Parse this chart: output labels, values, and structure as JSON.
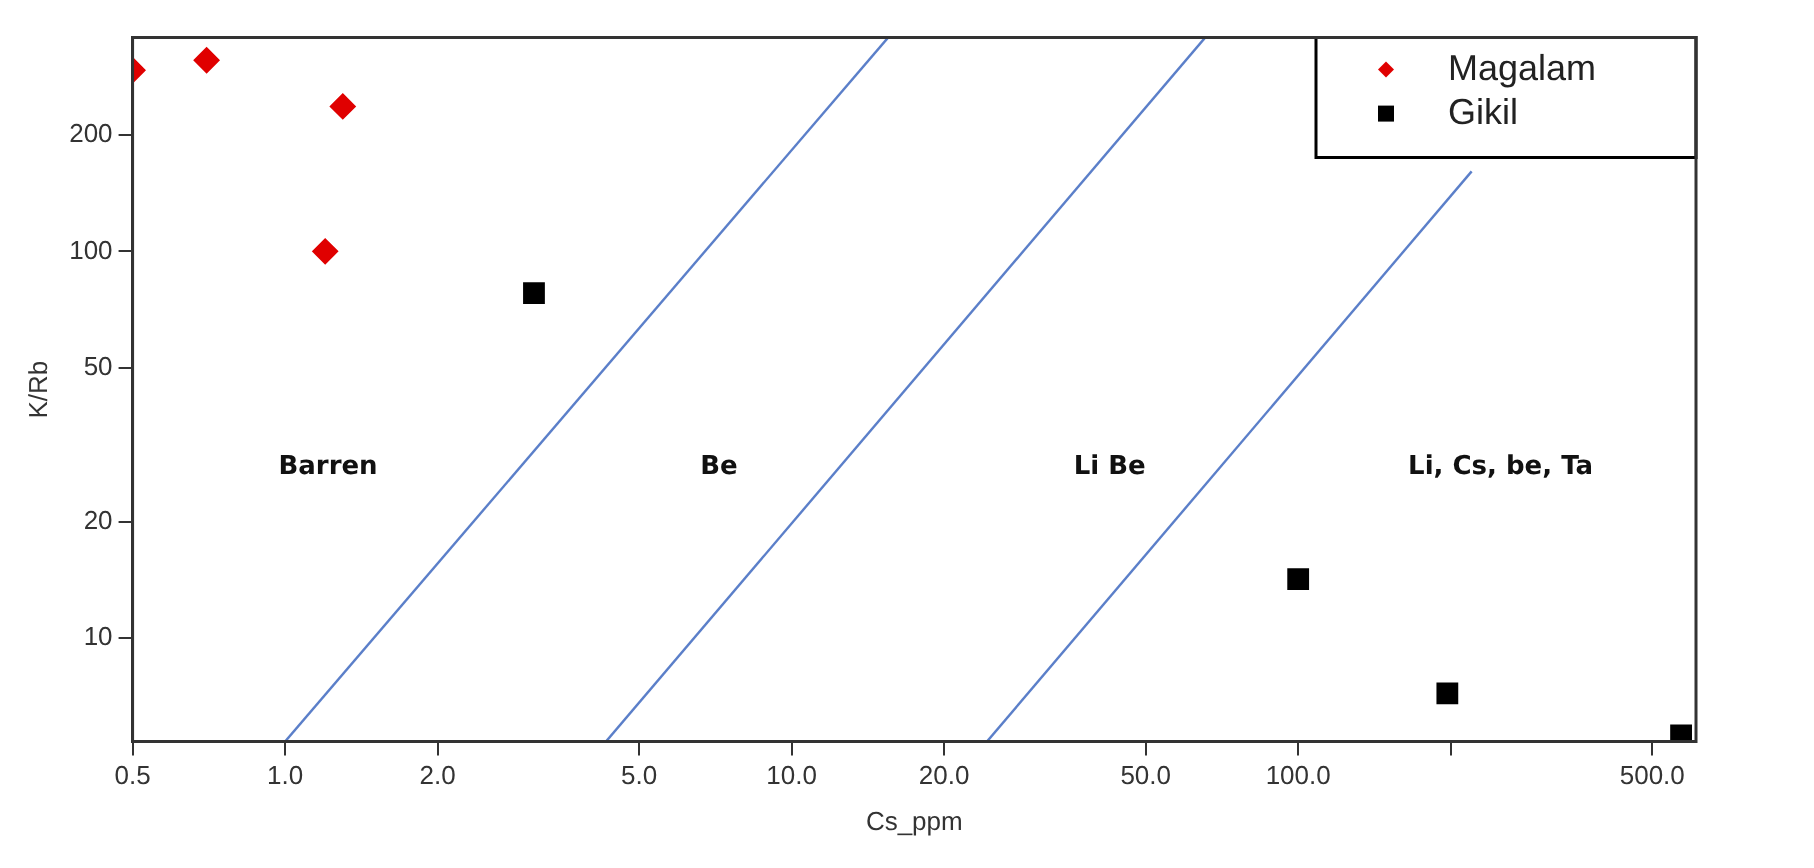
{
  "chart_data": {
    "type": "scatter",
    "xlabel": "Cs_ppm",
    "ylabel": "K/Rb",
    "log": "xy",
    "grid": false,
    "legend": "top right",
    "xlim": [
      0.5,
      610
    ],
    "ylim": [
      5.4,
      357
    ],
    "xticks": [
      {
        "value": 0.5,
        "label": "0.5"
      },
      {
        "value": 1,
        "label": "1.0"
      },
      {
        "value": 2,
        "label": "2.0"
      },
      {
        "value": 5,
        "label": "5.0"
      },
      {
        "value": 10,
        "label": "10.0"
      },
      {
        "value": 20,
        "label": "20.0"
      },
      {
        "value": 50,
        "label": "50.0"
      },
      {
        "value": 100,
        "label": "100.0"
      },
      {
        "value": 200,
        "label": null
      },
      {
        "value": 500,
        "label": "500.0"
      }
    ],
    "yticks": [
      10,
      20,
      50,
      100,
      200
    ],
    "series": [
      {
        "name": "Magalam",
        "color": "#e00000",
        "marker": "diamond",
        "x": [
          0.5,
          0.7,
          1.3,
          1.2
        ],
        "values": [
          294,
          312,
          237,
          100
        ]
      },
      {
        "name": "Gikil",
        "color": "#000000",
        "marker": "square",
        "x": [
          3.1,
          100,
          197,
          570
        ],
        "values": [
          78,
          14.2,
          7.2,
          5.6
        ]
      },
      {
        "type": "line",
        "color": "#5b7fc9",
        "marker": "none",
        "x": [
          1.0,
          15.5
        ],
        "values": [
          5.4,
          357
        ]
      },
      {
        "type": "line",
        "color": "#5b7fc9",
        "marker": "none",
        "x": [
          4.3,
          65.5
        ],
        "values": [
          5.4,
          357
        ]
      },
      {
        "type": "line",
        "color": "#5b7fc9",
        "marker": "none",
        "x": [
          24.3,
          220
        ],
        "values": [
          5.4,
          161
        ]
      }
    ],
    "annotations": [
      "Barren",
      "Be",
      "Li Be",
      "Li, Cs, be, Ta"
    ]
  }
}
